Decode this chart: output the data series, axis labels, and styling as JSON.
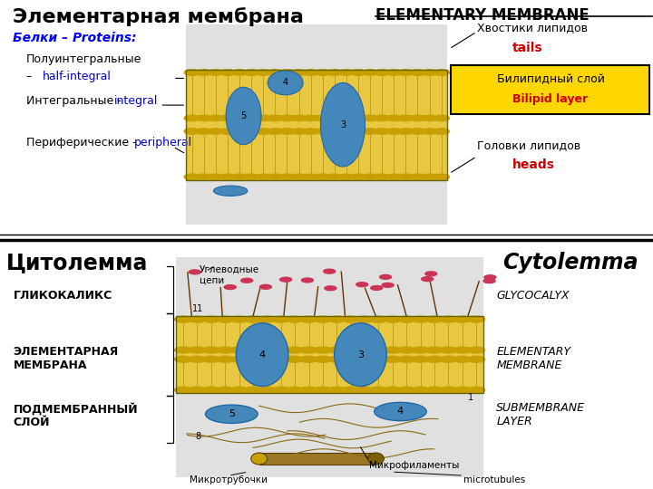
{
  "bg_color": "#ffffff",
  "top_panel_bg": "#f5f5f5",
  "bottom_panel_bg": "#ffffff",
  "top": {
    "title_ru": "Элементарная мембрана",
    "title_en": "ELEMENTARY MEMBRANE",
    "proteins_label": "Белки – Proteins:",
    "label_semi_ru": "Полуинтегральные",
    "label_semi_en": "half-integral",
    "label_semi_dash": "– ",
    "label_int_ru": "Интегральные - ",
    "label_int_en": "integral",
    "label_per_ru": "Периферические - ",
    "label_per_en": "peripheral",
    "tails_ru": "Хвостики липидов",
    "tails_en": "tails",
    "heads_ru": "Головки липидов",
    "heads_en": "heads",
    "bilipid_ru": "Билипидный слой",
    "bilipid_en": "Bilipid layer"
  },
  "bottom": {
    "title_ru": "Цитолемма",
    "title_en": "Cytolemma",
    "glyco_ru": "ГЛИКОКАЛИКС",
    "glyco_en": "GLYCOCALYX",
    "elem_ru": "ЭЛЕМЕНТАРНАЯ\nМЕМБРАНА",
    "elem_en": "ELEMENTARY\nMEMBRANE",
    "sub_ru": "ПОДМЕМБРАННЫЙ\nСЛОЙ",
    "sub_en": "SUBMEMBRANE\nLAYER",
    "carbo_label": "Углеводные\nцепи",
    "micro_fil": "Микрофиламенты",
    "micro_tub_ru": "Микротрубочки",
    "micro_tub_en": "microtubules"
  },
  "colors": {
    "black": "#000000",
    "blue_label": "#0000CC",
    "red_label": "#CC0000",
    "yellow_mem": "#E8C840",
    "yellow_head": "#C8A000",
    "yellow_tail": "#A08000",
    "yellow_box": "#FFD700",
    "blue_protein": "#4488BB",
    "blue_protein_edge": "#2266AA",
    "brown_micro": "#8B6914",
    "red_bead": "#CC3355",
    "brown_dark": "#663300"
  }
}
